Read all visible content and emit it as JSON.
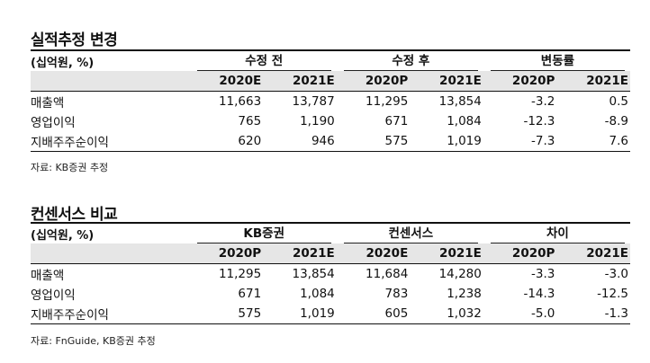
{
  "table1": {
    "title": "실적추정 변경",
    "unit": "(십억원, %)",
    "groups": [
      "수정 전",
      "수정 후",
      "변동률"
    ],
    "subheaders": [
      "2020E",
      "2021E",
      "2020P",
      "2021E",
      "2020P",
      "2021E"
    ],
    "rows": [
      {
        "label": "매출액",
        "values": [
          "11,663",
          "13,787",
          "11,295",
          "13,854",
          "-3.2",
          "0.5"
        ]
      },
      {
        "label": "영업이익",
        "values": [
          "765",
          "1,190",
          "671",
          "1,084",
          "-12.3",
          "-8.9"
        ]
      },
      {
        "label": "지배주주순이익",
        "values": [
          "620",
          "946",
          "575",
          "1,019",
          "-7.3",
          "7.6"
        ]
      }
    ],
    "source": "자료: KB증권 추정"
  },
  "table2": {
    "title": "컨센서스 비교",
    "unit": "(십억원, %)",
    "groups": [
      "KB증권",
      "컨센서스",
      "차이"
    ],
    "subheaders": [
      "2020P",
      "2021E",
      "2020E",
      "2021E",
      "2020P",
      "2021E"
    ],
    "rows": [
      {
        "label": "매출액",
        "values": [
          "11,295",
          "13,854",
          "11,684",
          "14,280",
          "-3.3",
          "-3.0"
        ]
      },
      {
        "label": "영업이익",
        "values": [
          "671",
          "1,084",
          "783",
          "1,238",
          "-14.3",
          "-12.5"
        ]
      },
      {
        "label": "지배주주순이익",
        "values": [
          "575",
          "1,019",
          "605",
          "1,032",
          "-5.0",
          "-1.3"
        ]
      }
    ],
    "source": "자료: FnGuide, KB증권 추정"
  }
}
